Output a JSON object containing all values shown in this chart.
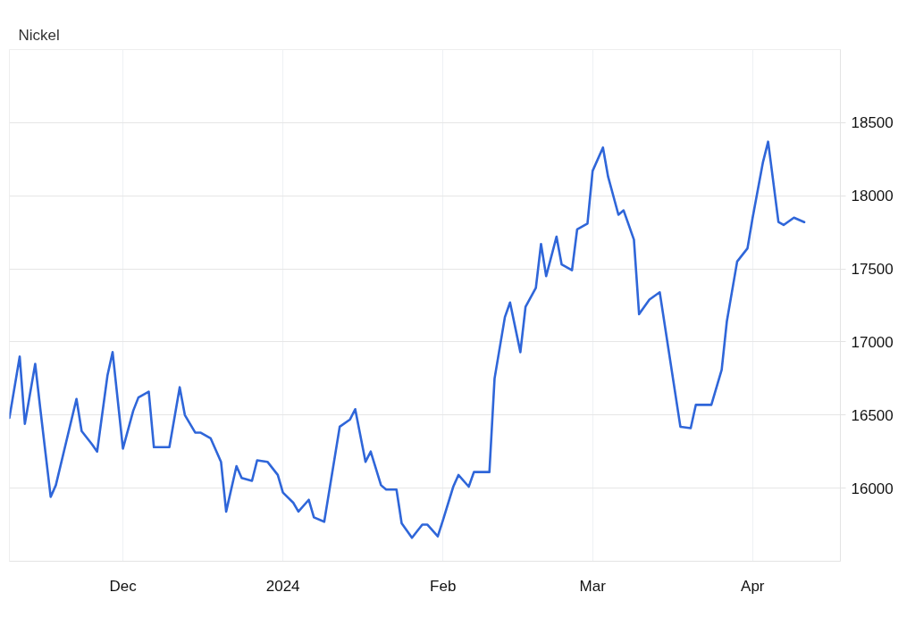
{
  "chart_data": {
    "type": "line",
    "title": "Nickel",
    "x": [
      "2023-11-09",
      "2023-11-11",
      "2023-11-12",
      "2023-11-14",
      "2023-11-15",
      "2023-11-17",
      "2023-11-18",
      "2023-11-22",
      "2023-11-23",
      "2023-11-25",
      "2023-11-26",
      "2023-11-28",
      "2023-11-29",
      "2023-12-01",
      "2023-12-03",
      "2023-12-04",
      "2023-12-06",
      "2023-12-07",
      "2023-12-09",
      "2023-12-10",
      "2023-12-12",
      "2023-12-13",
      "2023-12-15",
      "2023-12-16",
      "2023-12-18",
      "2023-12-20",
      "2023-12-21",
      "2023-12-23",
      "2023-12-24",
      "2023-12-26",
      "2023-12-27",
      "2023-12-29",
      "2023-12-31",
      "2024-01-01",
      "2024-01-03",
      "2024-01-04",
      "2024-01-06",
      "2024-01-07",
      "2024-01-09",
      "2024-01-12",
      "2024-01-14",
      "2024-01-15",
      "2024-01-17",
      "2024-01-18",
      "2024-01-20",
      "2024-01-21",
      "2024-01-23",
      "2024-01-24",
      "2024-01-26",
      "2024-01-28",
      "2024-01-29",
      "2024-01-31",
      "2024-02-01",
      "2024-02-03",
      "2024-02-04",
      "2024-02-06",
      "2024-02-07",
      "2024-02-08",
      "2024-02-10",
      "2024-02-11",
      "2024-02-13",
      "2024-02-14",
      "2024-02-16",
      "2024-02-17",
      "2024-02-19",
      "2024-02-20",
      "2024-02-21",
      "2024-02-23",
      "2024-02-24",
      "2024-02-26",
      "2024-02-27",
      "2024-02-29",
      "2024-03-01",
      "2024-03-03",
      "2024-03-04",
      "2024-03-06",
      "2024-03-07",
      "2024-03-09",
      "2024-03-10",
      "2024-03-12",
      "2024-03-14",
      "2024-03-18",
      "2024-03-20",
      "2024-03-21",
      "2024-03-24",
      "2024-03-26",
      "2024-03-27",
      "2024-03-29",
      "2024-03-31",
      "2024-04-01",
      "2024-04-03",
      "2024-04-04",
      "2024-04-06",
      "2024-04-07",
      "2024-04-09",
      "2024-04-11"
    ],
    "series": [
      {
        "color": "#2f66d9",
        "values": [
          16480,
          16900,
          16440,
          16850,
          16540,
          15940,
          16020,
          16610,
          16390,
          16300,
          16250,
          16770,
          16930,
          16270,
          16530,
          16620,
          16660,
          16280,
          16280,
          16280,
          16690,
          16500,
          16380,
          16380,
          16340,
          16180,
          15840,
          16150,
          16070,
          16050,
          16190,
          16180,
          16090,
          15970,
          15900,
          15840,
          15920,
          15800,
          15770,
          16420,
          16470,
          16540,
          16180,
          16250,
          16020,
          15990,
          15990,
          15760,
          15660,
          15750,
          15750,
          15670,
          15780,
          16010,
          16090,
          16010,
          16110,
          16110,
          16110,
          16750,
          17170,
          17270,
          16930,
          17240,
          17370,
          17670,
          17450,
          17720,
          17530,
          17490,
          17770,
          17810,
          18170,
          18330,
          18130,
          17870,
          17900,
          17700,
          17190,
          17290,
          17340,
          16420,
          16410,
          16570,
          16570,
          16810,
          17140,
          17550,
          17640,
          17850,
          18230,
          18370,
          17820,
          17800,
          17850,
          17820
        ]
      }
    ],
    "xlim": [
      "2023-11-09",
      "2024-04-18"
    ],
    "xticks": [
      {
        "value": "2023-12-01",
        "label": "Dec"
      },
      {
        "value": "2024-01-01",
        "label": "2024"
      },
      {
        "value": "2024-02-01",
        "label": "Feb"
      },
      {
        "value": "2024-03-01",
        "label": "Mar"
      },
      {
        "value": "2024-04-01",
        "label": "Apr"
      }
    ],
    "ylim": [
      15500,
      19000
    ],
    "yticks": [
      16000,
      16500,
      17000,
      17500,
      18000,
      18500
    ],
    "grid": true,
    "line_style": "solid"
  }
}
